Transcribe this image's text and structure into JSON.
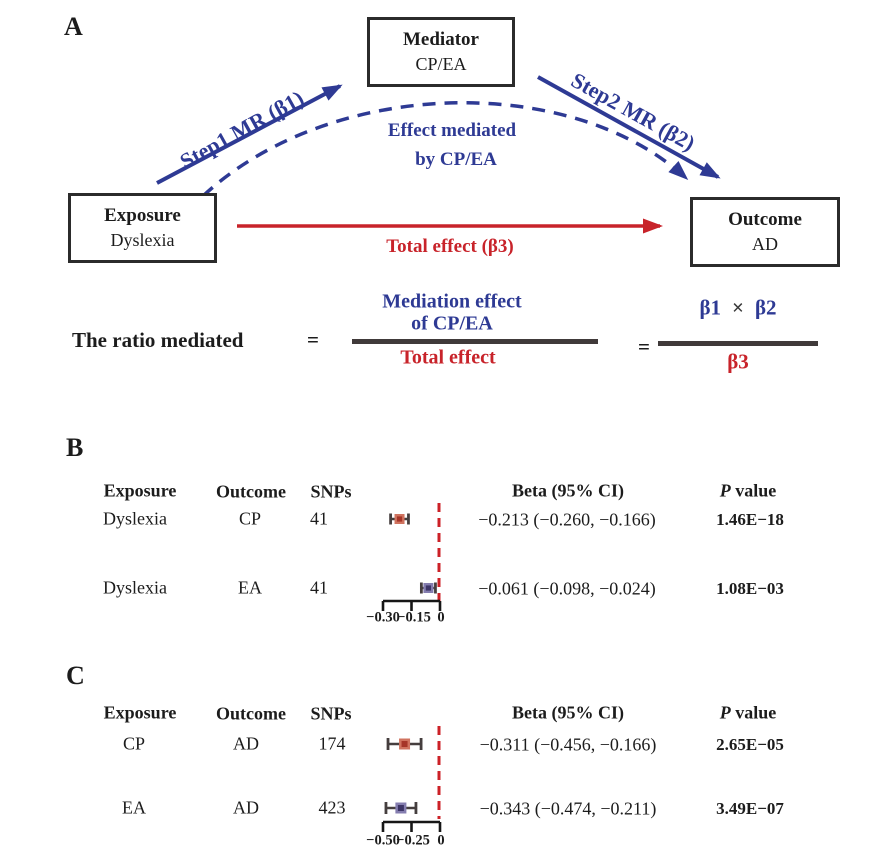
{
  "colors": {
    "blue": "#2e3a94",
    "red": "#c8232a",
    "ref_line": "#cc2127",
    "marker_red_fill": "#d0735f",
    "marker_red_core": "#a63528",
    "marker_blue_fill": "#847daf",
    "marker_blue_core": "#3d3567",
    "whisker": "#453e3e"
  },
  "panel_a": {
    "label": "A",
    "boxes": {
      "mediator": {
        "title": "Mediator",
        "subtitle": "CP/EA"
      },
      "exposure": {
        "title": "Exposure",
        "subtitle": "Dyslexia"
      },
      "outcome": {
        "title": "Outcome",
        "subtitle": "AD"
      }
    },
    "arrows": {
      "step1": "Step1 MR (β1)",
      "step2": "Step2 MR (β2)",
      "mediated_line1": "Effect mediated",
      "mediated_line2": "by CP/EA",
      "total": "Total effect (β3)"
    },
    "formula": {
      "lhs": "The ratio mediated",
      "eq1": "=",
      "num1_line1": "Mediation effect",
      "num1_line2": "of CP/EA",
      "den1": "Total effect",
      "eq2": "=",
      "b1": "β1",
      "times": "×",
      "b2": "β2",
      "den2": "β3"
    }
  },
  "panel_b": {
    "label": "B",
    "headers": {
      "exposure": "Exposure",
      "outcome": "Outcome",
      "snps": "SNPs",
      "beta": "Beta (95% CI)",
      "p": "P value"
    },
    "rows": [
      {
        "exposure": "Dyslexia",
        "outcome": "CP",
        "snps": "41",
        "beta": "−0.213 (−0.260, −0.166)",
        "p": "1.46E−18"
      },
      {
        "exposure": "Dyslexia",
        "outcome": "EA",
        "snps": "41",
        "beta": "−0.061 (−0.098, −0.024)",
        "p": "1.08E−03"
      }
    ],
    "axis": {
      "ticks": [
        "−0.30",
        "−0.15",
        "0"
      ]
    }
  },
  "panel_c": {
    "label": "C",
    "headers": {
      "exposure": "Exposure",
      "outcome": "Outcome",
      "snps": "SNPs",
      "beta": "Beta (95% CI)",
      "p": "P value"
    },
    "rows": [
      {
        "exposure": "CP",
        "outcome": "AD",
        "snps": "174",
        "beta": "−0.311 (−0.456, −0.166)",
        "p": "2.65E−05"
      },
      {
        "exposure": "EA",
        "outcome": "AD",
        "snps": "423",
        "beta": "−0.343 (−0.474, −0.211)",
        "p": "3.49E−07"
      }
    ],
    "axis": {
      "ticks": [
        "−0.50",
        "−0.25",
        "0"
      ]
    }
  },
  "chart_data": [
    {
      "type": "forest",
      "panel": "B",
      "x_axis": {
        "ticks": [
          -0.3,
          -0.15,
          0
        ],
        "lim": [
          -0.3,
          0
        ],
        "ref_line": 0
      },
      "rows": [
        {
          "exposure": "Dyslexia",
          "outcome": "CP",
          "snps": 41,
          "beta": -0.213,
          "ci_low": -0.26,
          "ci_high": -0.166,
          "p": "1.46E-18",
          "marker": "red"
        },
        {
          "exposure": "Dyslexia",
          "outcome": "EA",
          "snps": 41,
          "beta": -0.061,
          "ci_low": -0.098,
          "ci_high": -0.024,
          "p": "1.08E-03",
          "marker": "blue"
        }
      ]
    },
    {
      "type": "forest",
      "panel": "C",
      "x_axis": {
        "ticks": [
          -0.5,
          -0.25,
          0
        ],
        "lim": [
          -0.5,
          0
        ],
        "ref_line": 0
      },
      "rows": [
        {
          "exposure": "CP",
          "outcome": "AD",
          "snps": 174,
          "beta": -0.311,
          "ci_low": -0.456,
          "ci_high": -0.166,
          "p": "2.65E-05",
          "marker": "red"
        },
        {
          "exposure": "EA",
          "outcome": "AD",
          "snps": 423,
          "beta": -0.343,
          "ci_low": -0.474,
          "ci_high": -0.211,
          "p": "3.49E-07",
          "marker": "blue"
        }
      ]
    }
  ]
}
